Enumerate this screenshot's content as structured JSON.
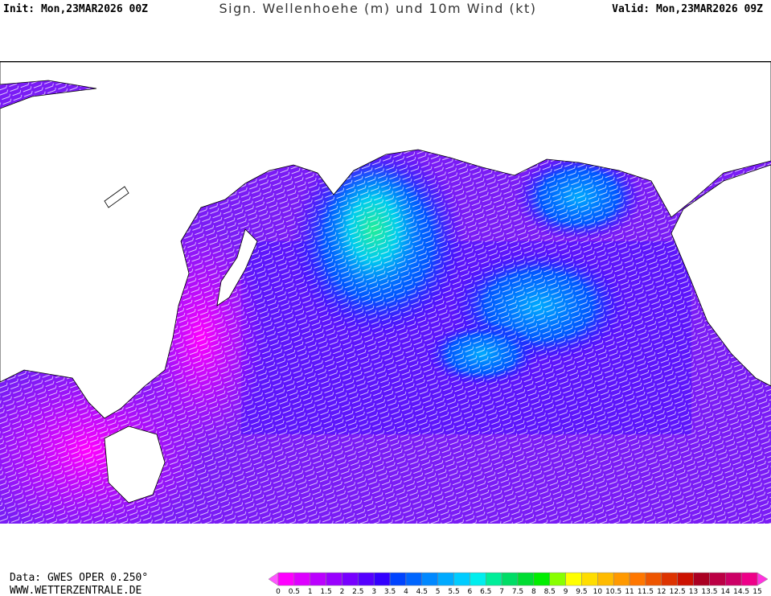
{
  "header": {
    "init": "Init: Mon,23MAR2026 00Z",
    "title": "Sign. Wellenhoehe (m) und 10m Wind (kt)",
    "valid": "Valid: Mon,23MAR2026 09Z"
  },
  "footer": {
    "source": "Data: GWES OPER 0.250°",
    "website": "WWW.WETTERZENTRALE.DE"
  },
  "colorbar": {
    "ticks": [
      0,
      0.5,
      1,
      1.5,
      2,
      2.5,
      3,
      3.5,
      4,
      4.5,
      5,
      5.5,
      6,
      6.5,
      7,
      7.5,
      8,
      8.5,
      9,
      9.5,
      10,
      10.5,
      11,
      11.5,
      12,
      12.5,
      13,
      13.5,
      14,
      14.5,
      15
    ],
    "colors": [
      "#ff00ff",
      "#dd00ff",
      "#bb00ff",
      "#9900ff",
      "#7700ff",
      "#5500ff",
      "#3300ff",
      "#0044ff",
      "#0066ff",
      "#0088ff",
      "#00aaff",
      "#00ccff",
      "#00eeee",
      "#00ee99",
      "#00dd66",
      "#00dd33",
      "#00ee00",
      "#88ff00",
      "#ffff00",
      "#ffdd00",
      "#ffbb00",
      "#ff9900",
      "#ff7700",
      "#ee5500",
      "#dd3300",
      "#cc1100",
      "#aa0022",
      "#bb0044",
      "#cc0066",
      "#ee0088"
    ],
    "arrow_colors": [
      "#ff55ff",
      "#ff33dd"
    ]
  }
}
